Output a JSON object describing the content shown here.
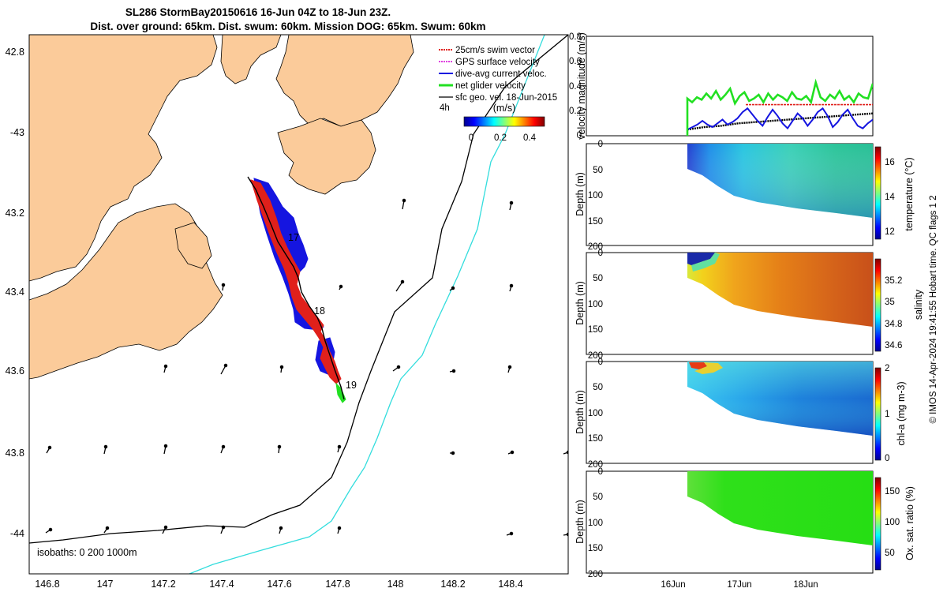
{
  "title": {
    "line1": "SL286 StormBay20150616 16-Jun 04Z to 18-Jun 23Z.",
    "line2": "Dist. over ground: 65km. Dist. swum: 60km. Mission DOG: 65km. Swum: 60km"
  },
  "colors": {
    "land": "#fbcb9a",
    "swim": "#e0201b",
    "gps": "#e040e0",
    "current": "#1515e0",
    "net": "#22e022",
    "sfc": "#000000",
    "iso200": "#000000",
    "iso1000": "#33dddd"
  },
  "chart_data": [
    {
      "type": "map",
      "name": "glider-track-map",
      "lon_ticks": [
        "146.8",
        "147",
        "147.2",
        "147.4",
        "147.6",
        "147.8",
        "148",
        "148.2",
        "148.4"
      ],
      "lat_ticks": [
        "42.8",
        "-43",
        "43.2",
        "43.4",
        "43.6",
        "43.8",
        "-44"
      ],
      "xlim": [
        146.75,
        148.6
      ],
      "ylim": [
        -44.13,
        -42.78
      ],
      "legend": {
        "items": [
          "25cm/s swim vector",
          "GPS surface velocity",
          "dive-avg current veloc.",
          "net glider velocity",
          "sfc geo. vel. 18-Jun-2015"
        ],
        "scale_label": "4h",
        "colorbar_label": "(m/s)",
        "colorbar_ticks": [
          "0",
          "0.2",
          "0.4"
        ]
      },
      "day_labels": [
        "17",
        "18",
        "19"
      ],
      "isobath_label": "isobaths: 0   200  1000m",
      "track": [
        [
          147.5,
          -43.14
        ],
        [
          147.55,
          -43.24
        ],
        [
          147.6,
          -43.32
        ],
        [
          147.63,
          -43.38
        ],
        [
          147.67,
          -43.45
        ],
        [
          147.72,
          -43.5
        ],
        [
          147.75,
          -43.56
        ],
        [
          147.78,
          -43.61
        ],
        [
          147.82,
          -43.66
        ]
      ]
    },
    {
      "type": "line",
      "name": "velocity-magnitude",
      "ylabel": "velocity magnitude (m/s)",
      "ylim": [
        0,
        0.8
      ],
      "yticks": [
        "0",
        "0.2",
        "0.4",
        "0.6",
        "0.8"
      ],
      "xticks": [
        "16Jun",
        "17Jun",
        "18Jun"
      ],
      "series": [
        {
          "name": "net glider velocity",
          "values": [
            0.3,
            0.27,
            0.31,
            0.29,
            0.34,
            0.3,
            0.36,
            0.29,
            0.33,
            0.38,
            0.26,
            0.32,
            0.35,
            0.28,
            0.3,
            0.33,
            0.27,
            0.34,
            0.29,
            0.33,
            0.31,
            0.28,
            0.35,
            0.3,
            0.29,
            0.32,
            0.27,
            0.43,
            0.31,
            0.28,
            0.33,
            0.3,
            0.36,
            0.29,
            0.32,
            0.27,
            0.34,
            0.31,
            0.3,
            0.42
          ]
        },
        {
          "name": "25cm/s swim vector",
          "values": [
            0.25,
            0.25
          ]
        },
        {
          "name": "dive-avg current veloc.",
          "values": [
            0.05,
            0.07,
            0.09,
            0.12,
            0.09,
            0.07,
            0.1,
            0.13,
            0.09,
            0.11,
            0.14,
            0.19,
            0.22,
            0.17,
            0.12,
            0.08,
            0.15,
            0.21,
            0.16,
            0.1,
            0.06,
            0.12,
            0.18,
            0.14,
            0.08,
            0.13,
            0.19,
            0.22,
            0.16,
            0.07,
            0.11,
            0.17,
            0.21,
            0.14,
            0.08,
            0.06,
            0.1,
            0.13
          ]
        },
        {
          "name": "GPS surface velocity",
          "values": [
            0.05,
            0.07,
            0.08,
            0.1,
            0.11,
            0.12,
            0.13,
            0.14,
            0.15,
            0.16,
            0.17,
            0.18
          ]
        }
      ]
    },
    {
      "type": "heatmap",
      "name": "temperature",
      "ylabel": "Depth (m)",
      "clabel": "temperature (°C)",
      "cticks": [
        "12",
        "14",
        "16"
      ],
      "yticks": [
        "0",
        "50",
        "100",
        "150",
        "200"
      ],
      "ylim": [
        200,
        0
      ],
      "crange": [
        11.5,
        16.8
      ]
    },
    {
      "type": "heatmap",
      "name": "salinity",
      "ylabel": "Depth (m)",
      "clabel": "salinity",
      "cticks": [
        "34.6",
        "34.8",
        "35",
        "35.2"
      ],
      "yticks": [
        "0",
        "50",
        "100",
        "150",
        "200"
      ],
      "ylim": [
        200,
        0
      ],
      "crange": [
        34.5,
        35.35
      ]
    },
    {
      "type": "heatmap",
      "name": "chlorophyll",
      "ylabel": "Depth (m)",
      "clabel": "chl-a (mg m-3)",
      "cticks": [
        "0",
        "1",
        "2"
      ],
      "yticks": [
        "0",
        "50",
        "100",
        "150",
        "200"
      ],
      "ylim": [
        200,
        0
      ],
      "crange": [
        0,
        2
      ]
    },
    {
      "type": "heatmap",
      "name": "oxygen",
      "ylabel": "Depth (m)",
      "clabel": "Ox. sat. ratio (%)",
      "cticks": [
        "50",
        "100",
        "150"
      ],
      "yticks": [
        "0",
        "50",
        "100",
        "150",
        "200"
      ],
      "ylim": [
        200,
        0
      ],
      "crange": [
        25,
        175
      ]
    }
  ],
  "credit": "© IMOS 14-Apr-2024 19:41:55 Hobart time. QC flags 1  2"
}
